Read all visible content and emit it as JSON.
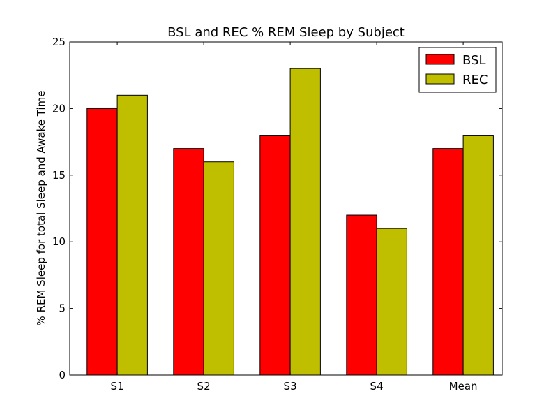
{
  "chart_data": {
    "type": "bar",
    "title": "BSL and REC % REM Sleep by Subject",
    "xlabel": "",
    "ylabel": "% REM Sleep for total Sleep and Awake Time",
    "categories": [
      "S1",
      "S2",
      "S3",
      "S4",
      "Mean"
    ],
    "series": [
      {
        "name": "BSL",
        "values": [
          20,
          17,
          18,
          12,
          17
        ],
        "color": "#ff0000"
      },
      {
        "name": "REC",
        "values": [
          21,
          16,
          23,
          11,
          18
        ],
        "color": "#bfbf00"
      }
    ],
    "ylim": [
      0,
      25
    ],
    "yticks": [
      0,
      5,
      10,
      15,
      20,
      25
    ],
    "grid": false,
    "legend_position": "top-right"
  }
}
